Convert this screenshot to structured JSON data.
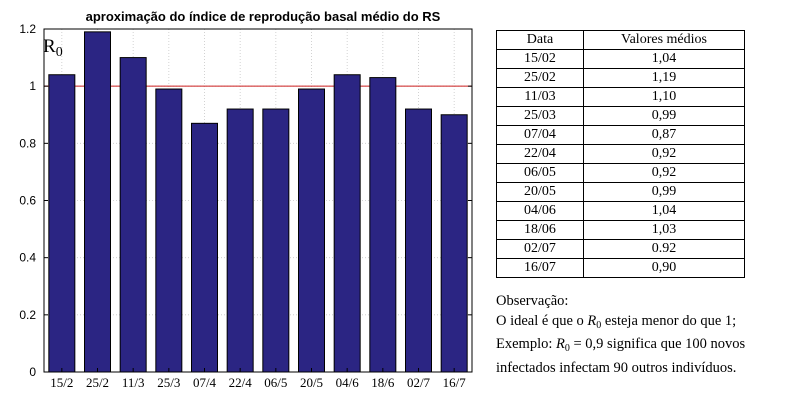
{
  "chart_data": {
    "type": "bar",
    "title": "aproximação do índice de reprodução basal médio do RS",
    "annotation_main": "R",
    "annotation_sub": "0",
    "categories": [
      "15/2",
      "25/2",
      "11/3",
      "25/3",
      "07/4",
      "22/4",
      "06/5",
      "20/5",
      "04/6",
      "18/6",
      "02/7",
      "16/7"
    ],
    "values": [
      1.04,
      1.19,
      1.1,
      0.99,
      0.87,
      0.92,
      0.92,
      0.99,
      1.04,
      1.03,
      0.92,
      0.9
    ],
    "ylim": [
      0,
      1.2
    ],
    "yticks": [
      "0",
      "0.2",
      "0.4",
      "0.6",
      "0.8",
      "1",
      "1.2"
    ],
    "reference_line": 1,
    "grid": true,
    "bar_color": "#2b2583",
    "reference_color": "#cc1f1f"
  },
  "table": {
    "headers": [
      "Data",
      "Valores médios"
    ],
    "rows": [
      [
        "15/02",
        "1,04"
      ],
      [
        "25/02",
        "1,19"
      ],
      [
        "11/03",
        "1,10"
      ],
      [
        "25/03",
        "0,99"
      ],
      [
        "07/04",
        "0,87"
      ],
      [
        "22/04",
        "0,92"
      ],
      [
        "06/05",
        "0,92"
      ],
      [
        "20/05",
        "0,99"
      ],
      [
        "04/06",
        "1,04"
      ],
      [
        "18/06",
        "1,03"
      ],
      [
        "02/07",
        "0.92"
      ],
      [
        "16/07",
        "0,90"
      ]
    ]
  },
  "notes": {
    "heading": "Observação:",
    "line1_before": "O ideal é que o ",
    "line1_math": "R",
    "line1_sub": "0",
    "line1_after": " esteja menor do que 1;",
    "line2_before": "Exemplo: ",
    "line2_math": "R",
    "line2_sub": "0",
    "line2_after": " = 0,9 significa que 100 novos",
    "line3": "infectados infectam 90 outros indivíduos."
  }
}
